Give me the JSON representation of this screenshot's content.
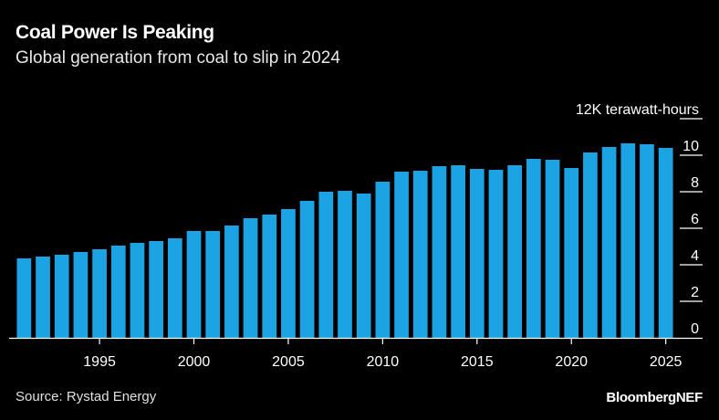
{
  "header": {
    "title": "Coal Power Is Peaking",
    "subtitle": "Global generation from coal to slip in 2024"
  },
  "footer": {
    "source": "Source: Rystad Energy",
    "brand": "BloombergNEF"
  },
  "colors": {
    "background": "#000000",
    "bar": "#1ba3e3",
    "text": "#ffffff",
    "axis": "#ffffff"
  },
  "chart_data": {
    "type": "bar",
    "title": "Coal Power Is Peaking",
    "subtitle": "Global generation from coal to slip in 2024",
    "ylabel": "terawatt-hours",
    "unit_label": "12K terawatt-hours",
    "ylim": [
      0,
      12000
    ],
    "y_ticks": [
      0,
      2000,
      4000,
      6000,
      8000,
      10000,
      12000
    ],
    "y_tick_labels": [
      "0",
      "2",
      "4",
      "6",
      "8",
      "10",
      "12K terawatt-hours"
    ],
    "x_tick_labels": [
      "1995",
      "2000",
      "2005",
      "2010",
      "2015",
      "2020",
      "2025"
    ],
    "x_ticks": [
      1995,
      2000,
      2005,
      2010,
      2015,
      2020,
      2025
    ],
    "grid": false,
    "y_axis_position": "right",
    "x": [
      1991,
      1992,
      1993,
      1994,
      1995,
      1996,
      1997,
      1998,
      1999,
      2000,
      2001,
      2002,
      2003,
      2004,
      2005,
      2006,
      2007,
      2008,
      2009,
      2010,
      2011,
      2012,
      2013,
      2014,
      2015,
      2016,
      2017,
      2018,
      2019,
      2020,
      2021,
      2022,
      2023,
      2024,
      2025
    ],
    "values": [
      4350,
      4450,
      4550,
      4700,
      4850,
      5050,
      5200,
      5300,
      5450,
      5850,
      5850,
      6150,
      6550,
      6750,
      7050,
      7500,
      8000,
      8050,
      7900,
      8550,
      9100,
      9150,
      9400,
      9450,
      9250,
      9200,
      9450,
      9800,
      9750,
      9300,
      10150,
      10450,
      10650,
      10600,
      10400
    ]
  }
}
